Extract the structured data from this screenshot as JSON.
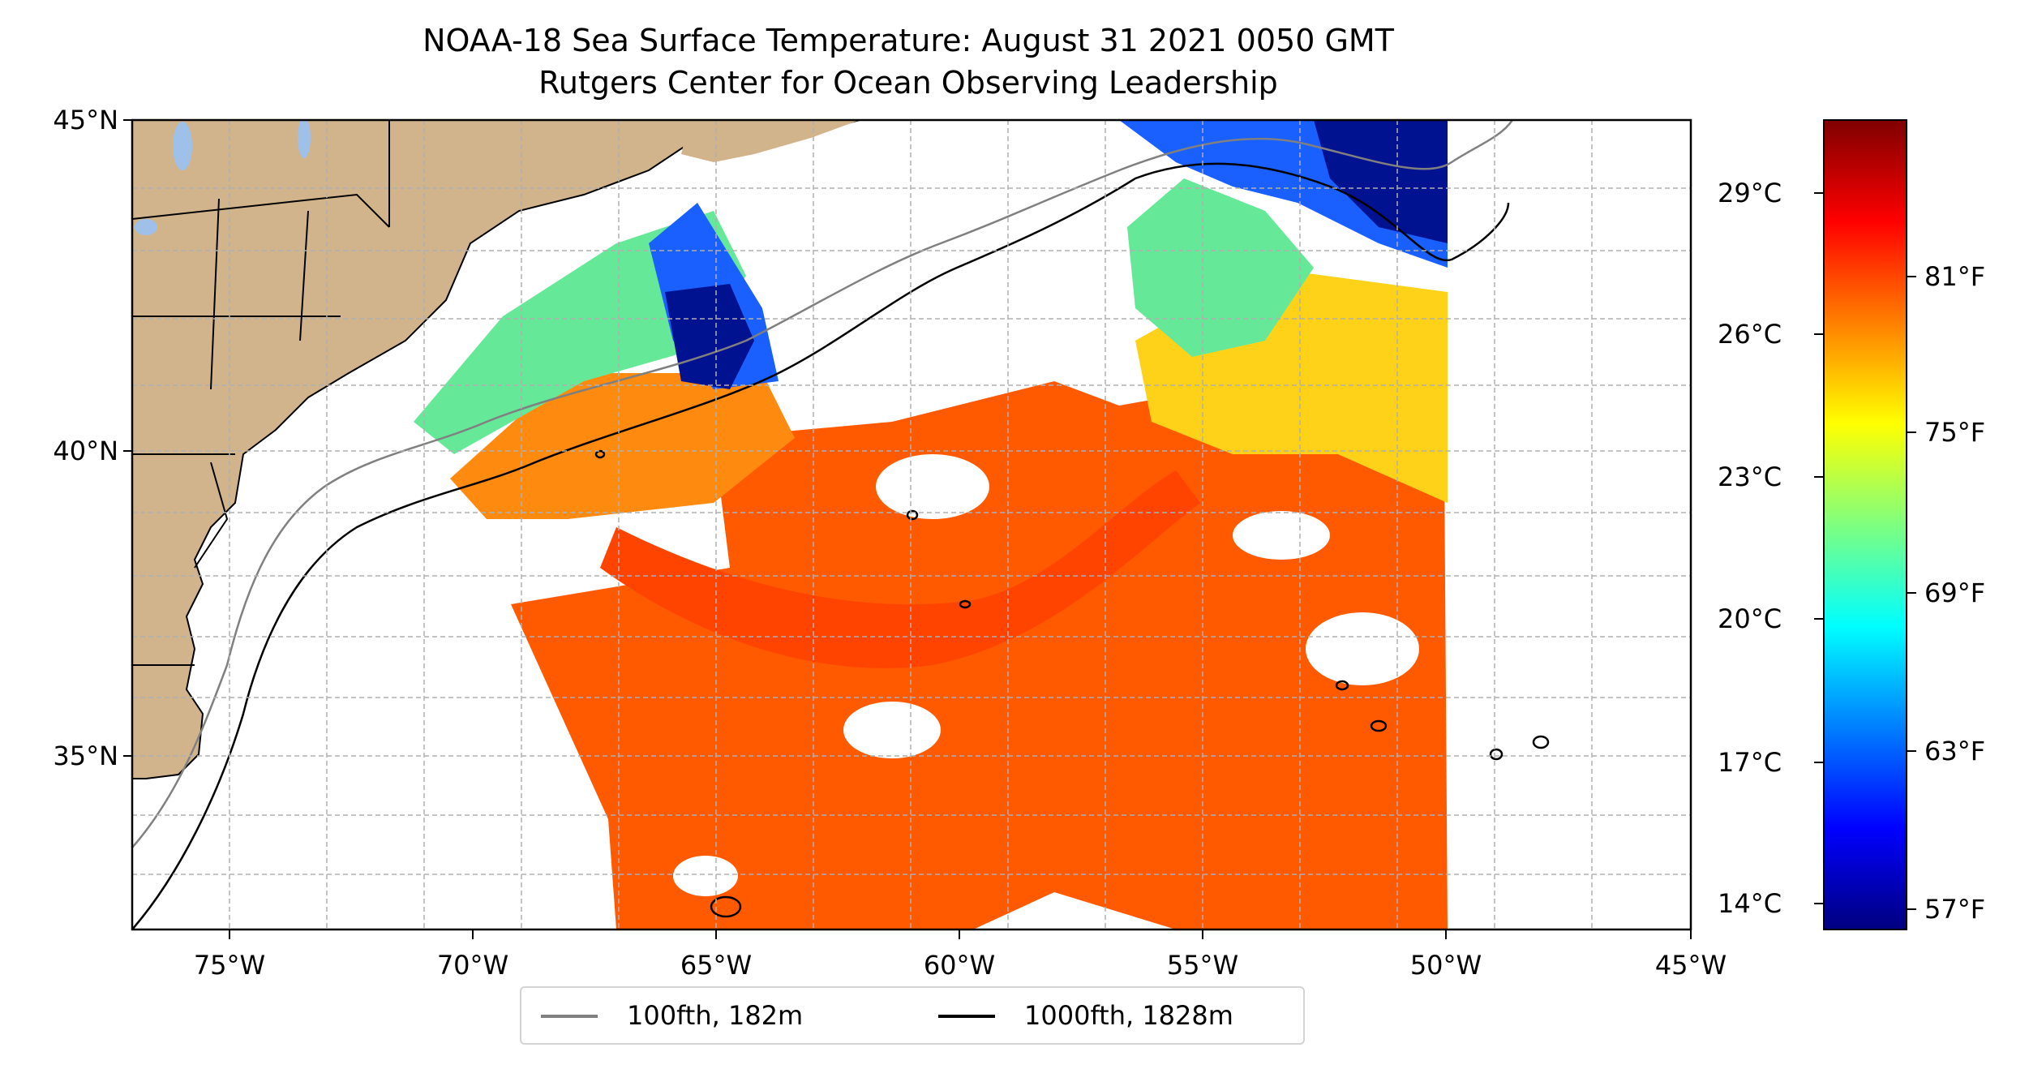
{
  "title": {
    "line1": "NOAA-18 Sea Surface Temperature: August 31 2021 0050 GMT",
    "line2": "Rutgers Center for Ocean Observing Leadership"
  },
  "axes": {
    "lat_labels": [
      "45°N",
      "40°N",
      "35°N"
    ],
    "lon_labels": [
      "75°W",
      "70°W",
      "65°W",
      "60°W",
      "55°W",
      "50°W",
      "45°W"
    ],
    "lon_range": [
      -77,
      -45
    ],
    "lat_range": [
      32.2,
      45
    ],
    "grid": true
  },
  "colorbar": {
    "colormap": "jet",
    "celsius_labels": [
      "29°C",
      "26°C",
      "23°C",
      "20°C",
      "17°C",
      "14°C"
    ],
    "fahrenheit_labels": [
      "81°F",
      "75°F",
      "69°F",
      "63°F",
      "57°F"
    ],
    "colors": [
      "#00007f",
      "#0000ff",
      "#007fff",
      "#00ffff",
      "#7fff7f",
      "#ffff00",
      "#ff7f00",
      "#ff0000",
      "#7f0000"
    ]
  },
  "legend": {
    "items": [
      {
        "label": "100fth, 182m",
        "color": "#808080"
      },
      {
        "label": "1000fth, 1828m",
        "color": "#000000"
      }
    ]
  },
  "map_colors": {
    "land": "#d2b48c",
    "lakes": "#9fc0e8",
    "warm": "#ff5a00",
    "gulf_stream": "#ff4400",
    "cool_green": "#66e899",
    "cold_blue": "#1a5fff",
    "very_cold": "#00128f"
  }
}
